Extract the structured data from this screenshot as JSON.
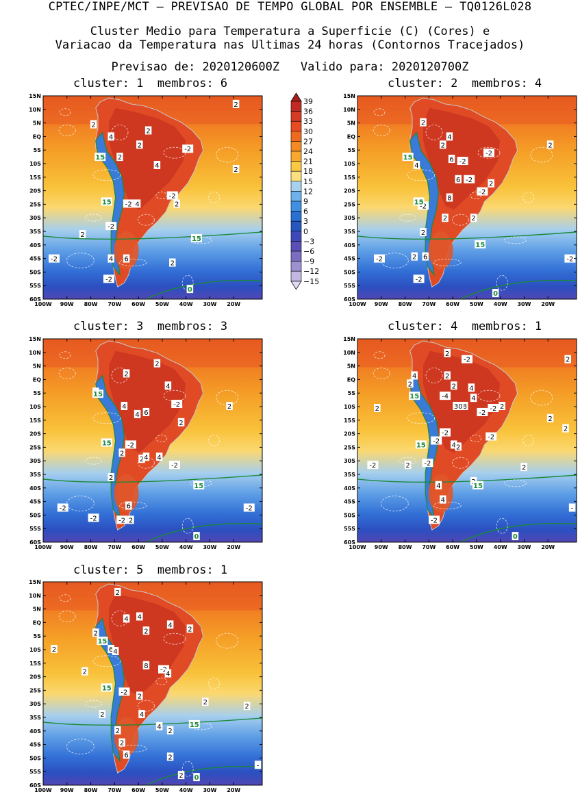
{
  "header": {
    "line1": "CPTEC/INPE/MCT – PREVISAO DE TEMPO GLOBAL POR ENSEMBLE – TQ0126L028",
    "line2": "Cluster Medio para Temperatura a Superficie (C) (Cores) e",
    "line3": "Variacao da Temperatura nas Ultimas 24 horas (Contornos Tracejados)",
    "line4": "Previsao de: 2020120600Z   Valido para: 2020120700Z"
  },
  "panels": [
    {
      "title": "cluster: 1  membros: 6",
      "labels": [
        [
          "4",
          0.31,
          0.2
        ],
        [
          "2",
          0.48,
          0.17
        ],
        [
          "2",
          0.44,
          0.24
        ],
        [
          "4",
          0.52,
          0.34
        ],
        [
          "-2",
          0.66,
          0.26
        ],
        [
          "2",
          0.35,
          0.3
        ],
        [
          "2",
          0.88,
          0.04
        ],
        [
          "2",
          0.88,
          0.36
        ],
        [
          "-2",
          0.39,
          0.53
        ],
        [
          "4",
          0.43,
          0.53
        ],
        [
          "-2",
          0.59,
          0.49
        ],
        [
          "2",
          0.61,
          0.53
        ],
        [
          "-2",
          0.31,
          0.64
        ],
        [
          "2",
          0.18,
          0.68
        ],
        [
          "4",
          0.31,
          0.8
        ],
        [
          "6",
          0.38,
          0.8
        ],
        [
          "2",
          0.59,
          0.82
        ],
        [
          "-2",
          0.05,
          0.8
        ],
        [
          "-2",
          0.3,
          0.9
        ],
        [
          "2",
          0.23,
          0.14
        ]
      ],
      "green": [
        [
          "15",
          0.26,
          0.3
        ],
        [
          "15",
          0.29,
          0.52
        ],
        [
          "15",
          0.7,
          0.7
        ],
        [
          "0",
          0.67,
          0.95
        ]
      ]
    },
    {
      "title": "cluster: 2  membros: 4",
      "labels": [
        [
          "2",
          0.3,
          0.13
        ],
        [
          "4",
          0.42,
          0.2
        ],
        [
          "2",
          0.39,
          0.24
        ],
        [
          "-2",
          0.48,
          0.32
        ],
        [
          "6",
          0.43,
          0.31
        ],
        [
          "-2",
          0.6,
          0.28
        ],
        [
          "2",
          0.88,
          0.24
        ],
        [
          "4",
          0.27,
          0.34
        ],
        [
          "6",
          0.46,
          0.41
        ],
        [
          "-2",
          0.51,
          0.41
        ],
        [
          "8",
          0.42,
          0.5
        ],
        [
          "-2",
          0.57,
          0.47
        ],
        [
          "2",
          0.61,
          0.43
        ],
        [
          "-2",
          0.3,
          0.54
        ],
        [
          "2",
          0.4,
          0.6
        ],
        [
          "2",
          0.3,
          0.67
        ],
        [
          "2",
          0.53,
          0.6
        ],
        [
          "2",
          0.26,
          0.79
        ],
        [
          "6",
          0.31,
          0.79
        ],
        [
          "-2",
          0.1,
          0.8
        ],
        [
          "-2",
          0.28,
          0.9
        ],
        [
          "-2",
          0.97,
          0.8
        ]
      ],
      "green": [
        [
          "15",
          0.23,
          0.3
        ],
        [
          "15",
          0.28,
          0.52
        ],
        [
          "15",
          0.56,
          0.73
        ],
        [
          "0",
          0.63,
          0.97
        ]
      ]
    },
    {
      "title": "cluster: 3  membros: 3",
      "labels": [
        [
          "2",
          0.38,
          0.17
        ],
        [
          "2",
          0.52,
          0.12
        ],
        [
          "4",
          0.57,
          0.23
        ],
        [
          "4",
          0.37,
          0.33
        ],
        [
          "4",
          0.43,
          0.37
        ],
        [
          "6",
          0.47,
          0.36
        ],
        [
          "-2",
          0.61,
          0.32
        ],
        [
          "2",
          0.63,
          0.41
        ],
        [
          "2",
          0.85,
          0.33
        ],
        [
          "2",
          0.24,
          0.26
        ],
        [
          "-2",
          0.4,
          0.52
        ],
        [
          "2",
          0.36,
          0.56
        ],
        [
          "2",
          0.45,
          0.59
        ],
        [
          "4",
          0.47,
          0.58
        ],
        [
          "4",
          0.53,
          0.58
        ],
        [
          "-2",
          0.6,
          0.62
        ],
        [
          "2",
          0.31,
          0.68
        ],
        [
          "6",
          0.39,
          0.82
        ],
        [
          "2",
          0.4,
          0.89
        ],
        [
          "-2",
          0.09,
          0.83
        ],
        [
          "-2",
          0.23,
          0.88
        ],
        [
          "-2",
          0.36,
          0.89
        ],
        [
          "-2",
          0.94,
          0.83
        ]
      ],
      "green": [
        [
          "15",
          0.25,
          0.27
        ],
        [
          "15",
          0.29,
          0.51
        ],
        [
          "15",
          0.71,
          0.72
        ],
        [
          "0",
          0.7,
          0.97
        ]
      ]
    },
    {
      "title": "cluster: 4  membros: 1",
      "labels": [
        [
          "2",
          0.41,
          0.07
        ],
        [
          "-2",
          0.5,
          0.1
        ],
        [
          "2",
          0.96,
          0.1
        ],
        [
          "4",
          0.26,
          0.18
        ],
        [
          "2",
          0.24,
          0.22
        ],
        [
          "2",
          0.41,
          0.18
        ],
        [
          "2",
          0.44,
          0.23
        ],
        [
          "4",
          0.52,
          0.24
        ],
        [
          "-4",
          0.4,
          0.28
        ],
        [
          "4",
          0.53,
          0.29
        ],
        [
          "8",
          0.49,
          0.33
        ],
        [
          "30",
          0.46,
          0.33
        ],
        [
          "-2",
          0.57,
          0.36
        ],
        [
          "-2",
          0.62,
          0.34
        ],
        [
          "2",
          0.66,
          0.33
        ],
        [
          "2",
          0.88,
          0.39
        ],
        [
          "2",
          0.95,
          0.44
        ],
        [
          "2",
          0.09,
          0.34
        ],
        [
          "-2",
          0.4,
          0.46
        ],
        [
          "-2",
          0.36,
          0.5
        ],
        [
          "4",
          0.44,
          0.52
        ],
        [
          "2",
          0.46,
          0.53
        ],
        [
          "-2",
          0.61,
          0.48
        ],
        [
          "2",
          0.23,
          0.62
        ],
        [
          "-2",
          0.32,
          0.61
        ],
        [
          "2",
          0.76,
          0.63
        ],
        [
          "-2",
          0.07,
          0.62
        ],
        [
          "4",
          0.37,
          0.72
        ],
        [
          "4",
          0.39,
          0.79
        ],
        [
          "2",
          0.53,
          0.7
        ],
        [
          "-2",
          0.35,
          0.89
        ],
        [
          "-",
          0.98,
          0.83
        ]
      ],
      "green": [
        [
          "15",
          0.26,
          0.28
        ],
        [
          "15",
          0.29,
          0.52
        ],
        [
          "15",
          0.55,
          0.72
        ],
        [
          "0",
          0.72,
          0.97
        ]
      ]
    },
    {
      "title": "cluster: 5  membros: 1",
      "labels": [
        [
          "2",
          0.34,
          0.05
        ],
        [
          "4",
          0.38,
          0.18
        ],
        [
          "4",
          0.44,
          0.17
        ],
        [
          "4",
          0.58,
          0.21
        ],
        [
          "2",
          0.47,
          0.24
        ],
        [
          "2",
          0.67,
          0.23
        ],
        [
          "2",
          0.24,
          0.25
        ],
        [
          "6",
          0.31,
          0.33
        ],
        [
          "4",
          0.33,
          0.34
        ],
        [
          "8",
          0.47,
          0.41
        ],
        [
          "-2",
          0.55,
          0.43
        ],
        [
          "4",
          0.57,
          0.45
        ],
        [
          "2",
          0.05,
          0.33
        ],
        [
          "2",
          0.19,
          0.44
        ],
        [
          "-2",
          0.37,
          0.54
        ],
        [
          "2",
          0.44,
          0.56
        ],
        [
          "2",
          0.74,
          0.59
        ],
        [
          "2",
          0.93,
          0.61
        ],
        [
          "2",
          0.27,
          0.65
        ],
        [
          "4",
          0.45,
          0.65
        ],
        [
          "4",
          0.53,
          0.71
        ],
        [
          "2",
          0.58,
          0.73
        ],
        [
          "2",
          0.34,
          0.73
        ],
        [
          "2",
          0.36,
          0.79
        ],
        [
          "6",
          0.38,
          0.85
        ],
        [
          "2",
          0.58,
          0.86
        ],
        [
          "2",
          0.63,
          0.95
        ],
        [
          "-",
          0.98,
          0.9
        ]
      ],
      "green": [
        [
          "15",
          0.27,
          0.29
        ],
        [
          "15",
          0.29,
          0.52
        ],
        [
          "15",
          0.69,
          0.7
        ],
        [
          "0",
          0.7,
          0.96
        ]
      ]
    }
  ],
  "lat_ticks": [
    "15N",
    "10N",
    "5N",
    "EQ",
    "5S",
    "10S",
    "15S",
    "20S",
    "25S",
    "30S",
    "35S",
    "40S",
    "45S",
    "50S",
    "55S",
    "60S"
  ],
  "lon_ticks": [
    "100W",
    "90W",
    "80W",
    "70W",
    "60W",
    "50W",
    "40W",
    "30W",
    "20W"
  ],
  "colorbar": {
    "labels": [
      "39",
      "36",
      "33",
      "30",
      "27",
      "24",
      "21",
      "18",
      "15",
      "12",
      "9",
      "6",
      "3",
      "0",
      "−3",
      "−6",
      "−9",
      "−12",
      "−15"
    ],
    "colors": [
      "#a5201d",
      "#c02a23",
      "#d63b26",
      "#e84a22",
      "#f06a1d",
      "#f58a22",
      "#f9a82e",
      "#fbc843",
      "#fbe07f",
      "#a8d1f0",
      "#6fb1ea",
      "#3f8fe2",
      "#2a6fd3",
      "#2656c2",
      "#3e48b8",
      "#5a4fb8",
      "#7a6dc2",
      "#9e91d2",
      "#c2b8e2",
      "#e1daf0"
    ]
  }
}
